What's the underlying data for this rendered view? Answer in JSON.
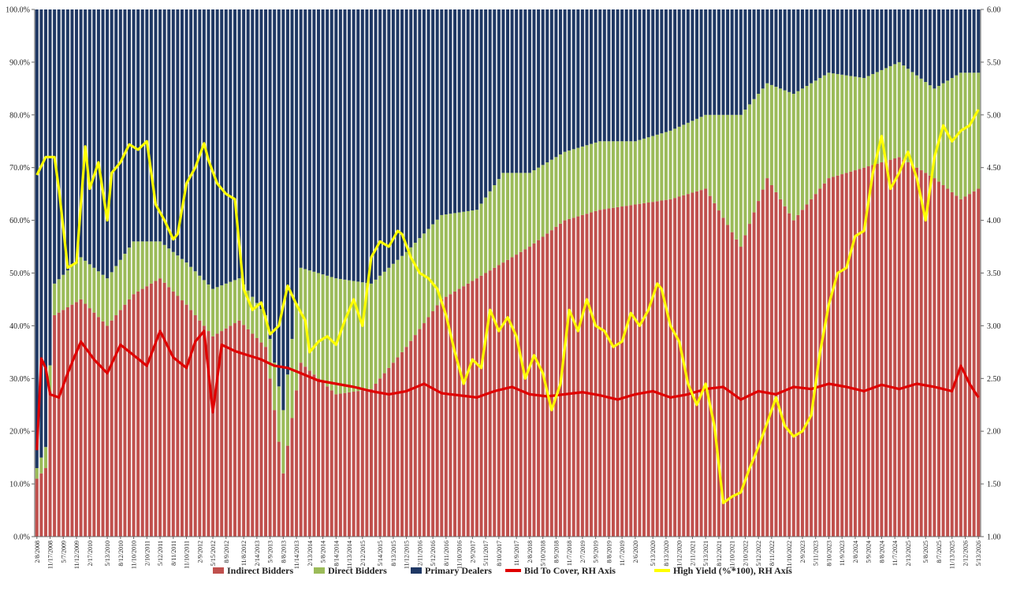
{
  "chart_data": {
    "type": "bar",
    "stacked": true,
    "n_auctions": 215,
    "left_axis": {
      "ylim": [
        0,
        100
      ],
      "tick_labels": [
        "0.0%",
        "10.0%",
        "20.0%",
        "30.0%",
        "40.0%",
        "50.0%",
        "60.0%",
        "70.0%",
        "80.0%",
        "90.0%",
        "100.0%"
      ]
    },
    "right_axis": {
      "ylim": [
        1.0,
        6.0
      ],
      "tick_labels": [
        "1.00",
        "1.50",
        "2.00",
        "2.50",
        "3.00",
        "3.50",
        "4.00",
        "4.50",
        "5.00",
        "5.50",
        "6.00"
      ]
    },
    "x_tick_labels": [
      "2/8/2008",
      "11/17/2008",
      "5/7/2009",
      "11/12/2009",
      "2/17/2010",
      "5/13/2010",
      "8/12/2010",
      "11/10/2010",
      "2/10/2011",
      "5/12/2011",
      "8/11/2011",
      "11/10/2011",
      "2/9/2012",
      "5/15/2012",
      "8/9/2012",
      "11/8/2012",
      "2/14/2013",
      "5/9/2013",
      "8/8/2013",
      "11/14/2013",
      "2/13/2014",
      "5/8/2014",
      "8/14/2014",
      "11/13/2014",
      "2/12/2015",
      "5/14/2015",
      "8/13/2015",
      "11/12/2015",
      "2/11/2016",
      "5/12/2016",
      "8/11/2016",
      "11/10/2016",
      "2/9/2017",
      "5/11/2017",
      "8/10/2017",
      "11/9/2017",
      "2/8/2018",
      "5/10/2018",
      "8/9/2018",
      "11/7/2018",
      "2/7/2019",
      "5/9/2019",
      "8/8/2019",
      "11/7/2019",
      "2/6/2020",
      "5/13/2020",
      "8/13/2020",
      "11/12/2020",
      "2/11/2021",
      "5/13/2021",
      "8/12/2021",
      "11/10/2021",
      "2/10/2022",
      "5/12/2022",
      "8/11/2022",
      "11/10/2022",
      "2/9/2023",
      "5/11/2023",
      "8/10/2023",
      "11/9/2023",
      "2/8/2024",
      "5/9/2024",
      "8/8/2024",
      "11/7/2024",
      "2/13/2025",
      "5/8/2025",
      "8/7/2025",
      "11/13/2025",
      "2/12/2026",
      "5/13/2026"
    ],
    "legend": [
      {
        "name": "Indirect Bidders",
        "color": "#c0504d",
        "kind": "bar"
      },
      {
        "name": "Direct Bidders",
        "color": "#9bbb59",
        "kind": "bar"
      },
      {
        "name": "Primary Dealers",
        "color": "#1f3864",
        "kind": "bar"
      },
      {
        "name": "Bid To Cover, RH Axis",
        "color": "#e00000",
        "kind": "line"
      },
      {
        "name": "High Yield (%*100), RH Axis",
        "color": "#ffff00",
        "kind": "line"
      }
    ],
    "legend_position": "bottom",
    "series": [
      {
        "name": "Indirect Bidders",
        "stack": "share",
        "anchors": [
          [
            0,
            11
          ],
          [
            2,
            13
          ],
          [
            4,
            42
          ],
          [
            10,
            45
          ],
          [
            16,
            40
          ],
          [
            22,
            46
          ],
          [
            28,
            49
          ],
          [
            34,
            44
          ],
          [
            40,
            38
          ],
          [
            46,
            41
          ],
          [
            52,
            36
          ],
          [
            56,
            12
          ],
          [
            60,
            33
          ],
          [
            68,
            27
          ],
          [
            76,
            28
          ],
          [
            84,
            36
          ],
          [
            92,
            45
          ],
          [
            100,
            49
          ],
          [
            106,
            52
          ],
          [
            112,
            55
          ],
          [
            120,
            60
          ],
          [
            128,
            62
          ],
          [
            136,
            63
          ],
          [
            144,
            64
          ],
          [
            152,
            66
          ],
          [
            160,
            55
          ],
          [
            166,
            68
          ],
          [
            172,
            60
          ],
          [
            180,
            68
          ],
          [
            188,
            70
          ],
          [
            196,
            72
          ],
          [
            204,
            68
          ],
          [
            210,
            64
          ],
          [
            214,
            66
          ]
        ]
      },
      {
        "name": "Direct Bidders",
        "stack": "share",
        "anchors": [
          [
            0,
            2
          ],
          [
            4,
            6
          ],
          [
            10,
            8
          ],
          [
            16,
            9
          ],
          [
            22,
            10
          ],
          [
            28,
            7
          ],
          [
            34,
            8
          ],
          [
            40,
            9
          ],
          [
            46,
            8
          ],
          [
            52,
            6
          ],
          [
            56,
            12
          ],
          [
            60,
            18
          ],
          [
            68,
            22
          ],
          [
            76,
            20
          ],
          [
            84,
            18
          ],
          [
            92,
            16
          ],
          [
            100,
            13
          ],
          [
            106,
            17
          ],
          [
            112,
            14
          ],
          [
            120,
            13
          ],
          [
            128,
            13
          ],
          [
            136,
            12
          ],
          [
            144,
            13
          ],
          [
            152,
            14
          ],
          [
            160,
            25
          ],
          [
            166,
            18
          ],
          [
            172,
            24
          ],
          [
            180,
            20
          ],
          [
            188,
            17
          ],
          [
            196,
            18
          ],
          [
            204,
            17
          ],
          [
            210,
            24
          ],
          [
            214,
            22
          ]
        ]
      },
      {
        "name": "Bid To Cover, RH Axis",
        "axis": "right",
        "anchors": [
          [
            0,
            1.82
          ],
          [
            1,
            2.69
          ],
          [
            2,
            2.6
          ],
          [
            3,
            2.35
          ],
          [
            5,
            2.32
          ],
          [
            7,
            2.55
          ],
          [
            10,
            2.85
          ],
          [
            13,
            2.68
          ],
          [
            16,
            2.55
          ],
          [
            19,
            2.82
          ],
          [
            22,
            2.72
          ],
          [
            25,
            2.62
          ],
          [
            28,
            2.95
          ],
          [
            31,
            2.7
          ],
          [
            34,
            2.6
          ],
          [
            36,
            2.85
          ],
          [
            38,
            2.95
          ],
          [
            40,
            2.18
          ],
          [
            42,
            2.82
          ],
          [
            45,
            2.76
          ],
          [
            48,
            2.72
          ],
          [
            51,
            2.68
          ],
          [
            54,
            2.62
          ],
          [
            57,
            2.6
          ],
          [
            60,
            2.55
          ],
          [
            64,
            2.48
          ],
          [
            68,
            2.45
          ],
          [
            72,
            2.42
          ],
          [
            76,
            2.38
          ],
          [
            80,
            2.35
          ],
          [
            84,
            2.38
          ],
          [
            88,
            2.45
          ],
          [
            92,
            2.36
          ],
          [
            96,
            2.34
          ],
          [
            100,
            2.32
          ],
          [
            104,
            2.38
          ],
          [
            108,
            2.42
          ],
          [
            112,
            2.35
          ],
          [
            116,
            2.33
          ],
          [
            120,
            2.35
          ],
          [
            124,
            2.37
          ],
          [
            128,
            2.34
          ],
          [
            132,
            2.3
          ],
          [
            136,
            2.35
          ],
          [
            140,
            2.38
          ],
          [
            144,
            2.32
          ],
          [
            148,
            2.35
          ],
          [
            152,
            2.4
          ],
          [
            156,
            2.42
          ],
          [
            160,
            2.3
          ],
          [
            164,
            2.38
          ],
          [
            168,
            2.35
          ],
          [
            172,
            2.42
          ],
          [
            176,
            2.4
          ],
          [
            180,
            2.45
          ],
          [
            184,
            2.42
          ],
          [
            188,
            2.38
          ],
          [
            192,
            2.44
          ],
          [
            196,
            2.4
          ],
          [
            200,
            2.45
          ],
          [
            204,
            2.42
          ],
          [
            208,
            2.38
          ],
          [
            210,
            2.62
          ],
          [
            212,
            2.45
          ],
          [
            214,
            2.32
          ]
        ]
      },
      {
        "name": "High Yield (%*100), RH Axis",
        "axis": "right",
        "anchors": [
          [
            0,
            4.43
          ],
          [
            2,
            4.6
          ],
          [
            4,
            4.6
          ],
          [
            5,
            4.3
          ],
          [
            7,
            3.55
          ],
          [
            9,
            3.6
          ],
          [
            11,
            4.7
          ],
          [
            12,
            4.3
          ],
          [
            14,
            4.55
          ],
          [
            16,
            4.0
          ],
          [
            17,
            4.45
          ],
          [
            19,
            4.55
          ],
          [
            21,
            4.72
          ],
          [
            23,
            4.67
          ],
          [
            25,
            4.75
          ],
          [
            27,
            4.15
          ],
          [
            29,
            4.0
          ],
          [
            31,
            3.82
          ],
          [
            32,
            3.87
          ],
          [
            34,
            4.35
          ],
          [
            36,
            4.5
          ],
          [
            38,
            4.73
          ],
          [
            39,
            4.57
          ],
          [
            41,
            4.35
          ],
          [
            43,
            4.25
          ],
          [
            45,
            4.2
          ],
          [
            47,
            3.35
          ],
          [
            49,
            3.15
          ],
          [
            51,
            3.22
          ],
          [
            53,
            2.92
          ],
          [
            55,
            3.0
          ],
          [
            57,
            3.38
          ],
          [
            59,
            3.2
          ],
          [
            61,
            3.05
          ],
          [
            62,
            2.75
          ],
          [
            64,
            2.85
          ],
          [
            66,
            2.9
          ],
          [
            68,
            2.82
          ],
          [
            70,
            3.05
          ],
          [
            72,
            3.25
          ],
          [
            74,
            3.0
          ],
          [
            76,
            3.65
          ],
          [
            78,
            3.8
          ],
          [
            80,
            3.75
          ],
          [
            82,
            3.9
          ],
          [
            83,
            3.87
          ],
          [
            85,
            3.65
          ],
          [
            87,
            3.5
          ],
          [
            89,
            3.45
          ],
          [
            91,
            3.35
          ],
          [
            93,
            3.1
          ],
          [
            95,
            2.75
          ],
          [
            97,
            2.45
          ],
          [
            99,
            2.68
          ],
          [
            101,
            2.6
          ],
          [
            103,
            3.15
          ],
          [
            105,
            2.95
          ],
          [
            107,
            3.08
          ],
          [
            109,
            2.9
          ],
          [
            111,
            2.5
          ],
          [
            113,
            2.72
          ],
          [
            115,
            2.55
          ],
          [
            117,
            2.2
          ],
          [
            119,
            2.45
          ],
          [
            121,
            3.15
          ],
          [
            123,
            2.95
          ],
          [
            125,
            3.25
          ],
          [
            127,
            3.0
          ],
          [
            129,
            2.95
          ],
          [
            131,
            2.8
          ],
          [
            133,
            2.85
          ],
          [
            135,
            3.12
          ],
          [
            137,
            3.0
          ],
          [
            139,
            3.15
          ],
          [
            141,
            3.4
          ],
          [
            142,
            3.35
          ],
          [
            144,
            3.0
          ],
          [
            146,
            2.85
          ],
          [
            148,
            2.45
          ],
          [
            150,
            2.25
          ],
          [
            152,
            2.45
          ],
          [
            154,
            2.05
          ],
          [
            156,
            1.32
          ],
          [
            158,
            1.38
          ],
          [
            160,
            1.42
          ],
          [
            162,
            1.65
          ],
          [
            164,
            1.85
          ],
          [
            166,
            2.08
          ],
          [
            168,
            2.32
          ],
          [
            170,
            2.05
          ],
          [
            172,
            1.95
          ],
          [
            174,
            2.0
          ],
          [
            176,
            2.15
          ],
          [
            178,
            2.75
          ],
          [
            180,
            3.2
          ],
          [
            182,
            3.5
          ],
          [
            184,
            3.55
          ],
          [
            186,
            3.85
          ],
          [
            188,
            3.9
          ],
          [
            190,
            4.45
          ],
          [
            192,
            4.8
          ],
          [
            194,
            4.3
          ],
          [
            196,
            4.45
          ],
          [
            198,
            4.65
          ],
          [
            200,
            4.4
          ],
          [
            202,
            4.0
          ],
          [
            204,
            4.6
          ],
          [
            206,
            4.9
          ],
          [
            208,
            4.75
          ],
          [
            210,
            4.85
          ],
          [
            212,
            4.9
          ],
          [
            214,
            5.05
          ]
        ]
      }
    ]
  }
}
